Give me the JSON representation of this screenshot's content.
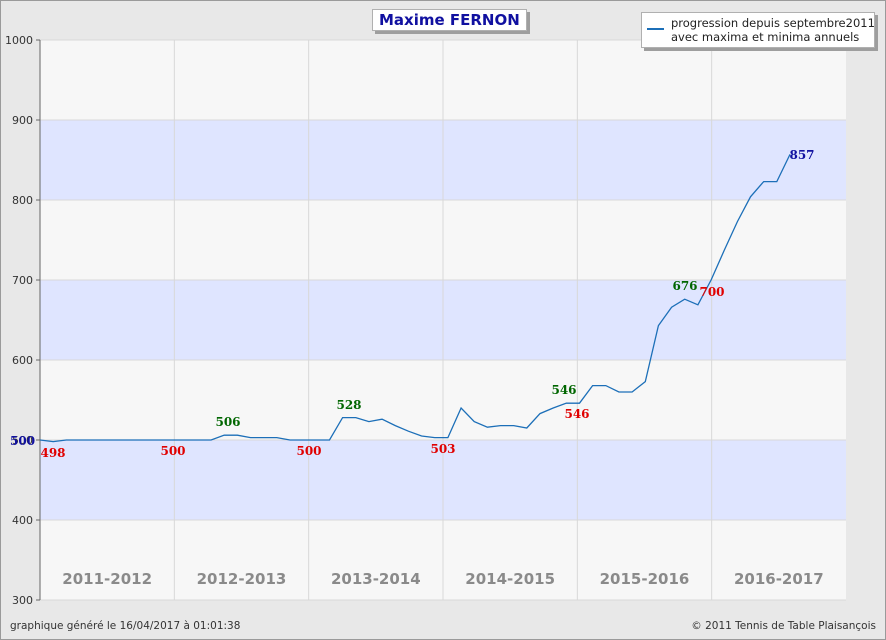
{
  "chart_data": {
    "type": "line",
    "title": "Maxime FERNON",
    "legend": {
      "position": "top-right",
      "lines": [
        "progression depuis septembre2011",
        "avec maxima et minima annuels"
      ]
    },
    "ylim": [
      300,
      1000
    ],
    "yticks": [
      "300",
      "400",
      "500",
      "600",
      "700",
      "800",
      "900",
      "1000"
    ],
    "seasons": [
      "2011-2012",
      "2012-2013",
      "2013-2014",
      "2014-2015",
      "2015-2016",
      "2016-2017"
    ],
    "series": [
      {
        "values": [
          500,
          498,
          500,
          500,
          500,
          500,
          500,
          500,
          500,
          500,
          500,
          500,
          500,
          500,
          506,
          506,
          503,
          503,
          503,
          500,
          500,
          500,
          500,
          528,
          528,
          523,
          526,
          518,
          511,
          505,
          503,
          503,
          540,
          523,
          516,
          518,
          518,
          515,
          533,
          540,
          546,
          546,
          568,
          568,
          560,
          560,
          573,
          643,
          666,
          676,
          669,
          700,
          737,
          773,
          804,
          823,
          823,
          857
        ]
      }
    ],
    "annotations": [
      {
        "label": "500",
        "value": 500,
        "kind": "start"
      },
      {
        "label": "498",
        "value": 498,
        "kind": "min"
      },
      {
        "label": "500",
        "value": 500,
        "kind": "min"
      },
      {
        "label": "506",
        "value": 506,
        "kind": "max"
      },
      {
        "label": "500",
        "value": 500,
        "kind": "min"
      },
      {
        "label": "528",
        "value": 528,
        "kind": "max"
      },
      {
        "label": "503",
        "value": 503,
        "kind": "min"
      },
      {
        "label": "546",
        "value": 546,
        "kind": "max"
      },
      {
        "label": "546",
        "value": 546,
        "kind": "min"
      },
      {
        "label": "676",
        "value": 676,
        "kind": "max"
      },
      {
        "label": "700",
        "value": 700,
        "kind": "min"
      },
      {
        "label": "857",
        "value": 857,
        "kind": "last"
      }
    ],
    "grid": true,
    "colors": {
      "line": "#1c6fb8",
      "max_label": "#006600",
      "min_label": "#e00000",
      "start_last_label": "#1010a0",
      "band": "#dfe5ff",
      "band_alt": "#f7f7f7"
    }
  },
  "footer": {
    "left": "graphique généré le 16/04/2017 à 01:01:38",
    "right": "© 2011 Tennis de Table Plaisançois"
  }
}
